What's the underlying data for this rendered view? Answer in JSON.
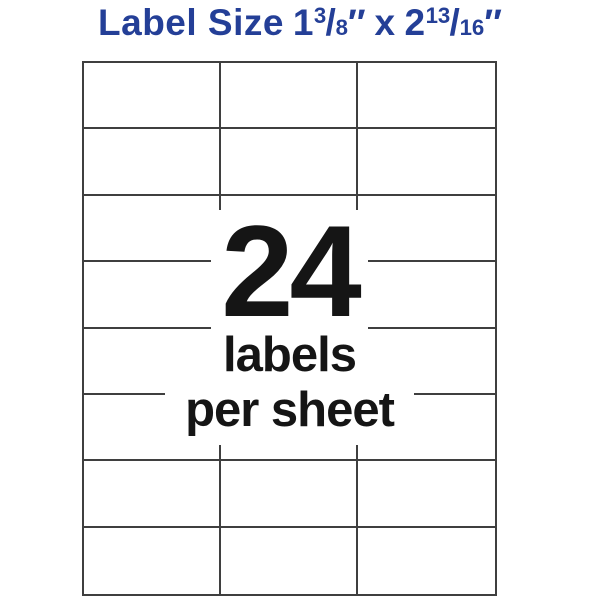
{
  "title": {
    "prefix": "Label Size",
    "fraction1": {
      "whole": "1",
      "numerator": "3",
      "slash": "/",
      "denominator": "8",
      "prime": "″"
    },
    "separator": "x",
    "fraction2": {
      "whole": "2",
      "numerator": "13",
      "slash": "/",
      "denominator": "16",
      "prime": "″"
    }
  },
  "sheet": {
    "columns": 3,
    "rows": 8,
    "label_count": 24
  },
  "center_text": {
    "count": "24",
    "line1": "labels",
    "line2": "per sheet"
  },
  "colors": {
    "title_blue": "#243F97",
    "grid_line": "#3F3F3F",
    "text_black": "#151515",
    "background": "#FFFFFF"
  }
}
